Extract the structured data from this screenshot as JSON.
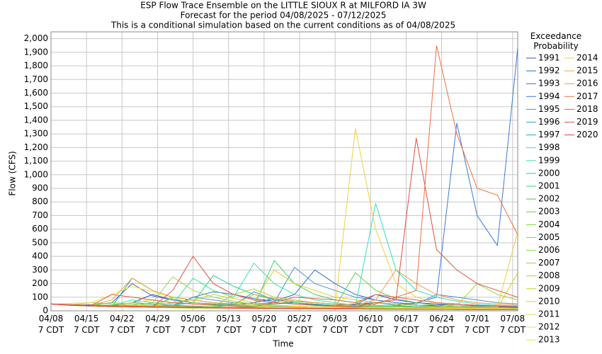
{
  "chart_data": {
    "type": "line",
    "title": "ESP Flow Trace Ensemble on the LITTLE SIOUX R at MILFORD IA 3W",
    "subtitle": "Forecast for the period 04/08/2025 - 07/12/2025",
    "note": "This is a conditional simulation based on the current conditions as of 04/08/2025",
    "x_label": "Time",
    "y_label": "Flow (CFS)",
    "legend_title": "Exceedance Probability",
    "grid": true,
    "xlim": [
      "04/08",
      "07/09"
    ],
    "ylim": [
      0,
      2050
    ],
    "xticks": [
      {
        "value": "04/08",
        "label": "04/08 7 CDT"
      },
      {
        "value": "04/15",
        "label": "04/15 7 CDT"
      },
      {
        "value": "04/22",
        "label": "04/22 7 CDT"
      },
      {
        "value": "04/29",
        "label": "04/29 7 CDT"
      },
      {
        "value": "05/06",
        "label": "05/06 7 CDT"
      },
      {
        "value": "05/13",
        "label": "05/13 7 CDT"
      },
      {
        "value": "05/20",
        "label": "05/20 7 CDT"
      },
      {
        "value": "05/27",
        "label": "05/27 7 CDT"
      },
      {
        "value": "06/03",
        "label": "06/03 7 CDT"
      },
      {
        "value": "06/10",
        "label": "06/10 7 CDT"
      },
      {
        "value": "06/17",
        "label": "06/17 7 CDT"
      },
      {
        "value": "06/24",
        "label": "06/24 7 CDT"
      },
      {
        "value": "07/01",
        "label": "07/01 7 CDT"
      },
      {
        "value": "07/08",
        "label": "07/08 7 CDT"
      }
    ],
    "yticks": [
      0,
      100,
      200,
      300,
      400,
      500,
      600,
      700,
      800,
      900,
      {
        "value": 1000,
        "label": "1,000"
      },
      {
        "value": 1100,
        "label": "1,100"
      },
      {
        "value": 1200,
        "label": "1,200"
      },
      {
        "value": 1300,
        "label": "1,300"
      },
      {
        "value": 1400,
        "label": "1,400"
      },
      {
        "value": 1500,
        "label": "1,500"
      },
      {
        "value": 1600,
        "label": "1,600"
      },
      {
        "value": 1700,
        "label": "1,700"
      },
      {
        "value": 1800,
        "label": "1,800"
      },
      {
        "value": 1900,
        "label": "1,900"
      },
      {
        "value": 2000,
        "label": "2,000"
      }
    ],
    "x": [
      "04/08",
      "04/12",
      "04/16",
      "04/20",
      "04/24",
      "04/28",
      "05/02",
      "05/06",
      "05/10",
      "05/14",
      "05/18",
      "05/22",
      "05/26",
      "05/30",
      "06/03",
      "06/07",
      "06/11",
      "06/15",
      "06/19",
      "06/23",
      "06/27",
      "07/01",
      "07/05",
      "07/09"
    ],
    "series": [
      {
        "name": "1991",
        "color": "#3050c0",
        "values": [
          50,
          42,
          38,
          35,
          60,
          120,
          80,
          60,
          45,
          40,
          60,
          90,
          70,
          60,
          50,
          45,
          120,
          80,
          60,
          50,
          40,
          35,
          30,
          28
        ]
      },
      {
        "name": "1992",
        "color": "#4060d0",
        "values": [
          50,
          42,
          45,
          60,
          200,
          110,
          80,
          60,
          50,
          45,
          40,
          50,
          60,
          45,
          40,
          50,
          60,
          50,
          40,
          35,
          30,
          30,
          30,
          25
        ]
      },
      {
        "name": "1993",
        "color": "#2f6fc0",
        "values": [
          50,
          40,
          35,
          30,
          30,
          35,
          40,
          100,
          140,
          120,
          90,
          70,
          120,
          300,
          200,
          120,
          80,
          60,
          40,
          40,
          50,
          40,
          35,
          30
        ]
      },
      {
        "name": "1994",
        "color": "#3a7ad8",
        "values": [
          50,
          40,
          35,
          30,
          28,
          25,
          24,
          22,
          20,
          20,
          18,
          18,
          16,
          16,
          15,
          15,
          20,
          40,
          60,
          100,
          1380,
          700,
          480,
          1930
        ]
      },
      {
        "name": "1995",
        "color": "#4a90d0",
        "values": [
          50,
          42,
          40,
          38,
          35,
          30,
          30,
          100,
          80,
          60,
          50,
          60,
          320,
          200,
          150,
          100,
          80,
          60,
          50,
          120,
          100,
          80,
          60,
          50
        ]
      },
      {
        "name": "1996",
        "color": "#30a0c0",
        "values": [
          50,
          45,
          40,
          40,
          60,
          50,
          40,
          35,
          30,
          40,
          140,
          80,
          60,
          40,
          35,
          30,
          30,
          30,
          30,
          25,
          25,
          25,
          20,
          20
        ]
      },
      {
        "name": "1997",
        "color": "#20b0b0",
        "values": [
          50,
          40,
          35,
          30,
          240,
          150,
          100,
          80,
          60,
          50,
          40,
          35,
          30,
          30,
          30,
          40,
          60,
          40,
          30,
          30,
          25,
          25,
          22,
          20
        ]
      },
      {
        "name": "1998",
        "color": "#30e0c0",
        "values": [
          50,
          42,
          38,
          35,
          30,
          30,
          30,
          28,
          25,
          25,
          25,
          22,
          20,
          20,
          20,
          30,
          790,
          300,
          150,
          100,
          70,
          50,
          40,
          35
        ]
      },
      {
        "name": "1999",
        "color": "#40e0a0",
        "values": [
          50,
          40,
          38,
          40,
          80,
          60,
          50,
          240,
          150,
          100,
          350,
          200,
          120,
          80,
          60,
          40,
          30,
          30,
          25,
          25,
          20,
          20,
          20,
          18
        ]
      },
      {
        "name": "2000",
        "color": "#30d090",
        "values": [
          50,
          40,
          35,
          30,
          30,
          30,
          40,
          60,
          260,
          180,
          120,
          80,
          60,
          50,
          40,
          35,
          30,
          30,
          25,
          25,
          22,
          20,
          20,
          18
        ]
      },
      {
        "name": "2001",
        "color": "#40d070",
        "values": [
          50,
          40,
          35,
          30,
          28,
          25,
          24,
          22,
          20,
          25,
          30,
          370,
          200,
          120,
          80,
          60,
          40,
          35,
          30,
          25,
          22,
          20,
          18,
          16
        ]
      },
      {
        "name": "2002",
        "color": "#50c050",
        "values": [
          50,
          45,
          40,
          35,
          30,
          30,
          100,
          80,
          60,
          50,
          40,
          50,
          70,
          60,
          50,
          40,
          60,
          50,
          40,
          30,
          30,
          25,
          20,
          20
        ]
      },
      {
        "name": "2003",
        "color": "#60d040",
        "values": [
          50,
          40,
          38,
          35,
          32,
          30,
          28,
          25,
          25,
          60,
          50,
          40,
          35,
          30,
          30,
          280,
          150,
          90,
          60,
          40,
          30,
          25,
          22,
          20
        ]
      },
      {
        "name": "2004",
        "color": "#70d030",
        "values": [
          50,
          40,
          35,
          30,
          28,
          25,
          22,
          20,
          20,
          18,
          16,
          15,
          15,
          14,
          14,
          13,
          12,
          12,
          11,
          11,
          10,
          10,
          10,
          10
        ]
      },
      {
        "name": "2005",
        "color": "#80e020",
        "values": [
          50,
          45,
          40,
          60,
          50,
          40,
          35,
          30,
          28,
          25,
          40,
          30,
          25,
          22,
          20,
          20,
          18,
          18,
          16,
          15,
          14,
          13,
          12,
          12
        ]
      },
      {
        "name": "2006",
        "color": "#90e040",
        "values": [
          50,
          42,
          40,
          35,
          30,
          40,
          90,
          60,
          45,
          40,
          35,
          30,
          28,
          25,
          22,
          20,
          20,
          18,
          16,
          15,
          14,
          13,
          12,
          12
        ]
      },
      {
        "name": "2007",
        "color": "#a0d040",
        "values": [
          50,
          40,
          38,
          35,
          40,
          60,
          250,
          150,
          100,
          70,
          50,
          40,
          35,
          30,
          28,
          25,
          22,
          20,
          20,
          30,
          40,
          200,
          120,
          80
        ]
      },
      {
        "name": "2008",
        "color": "#b0d030",
        "values": [
          50,
          45,
          60,
          50,
          40,
          35,
          30,
          30,
          30,
          120,
          160,
          100,
          80,
          60,
          50,
          40,
          35,
          30,
          25,
          22,
          20,
          20,
          18,
          18
        ]
      },
      {
        "name": "2009",
        "color": "#c0d020",
        "values": [
          50,
          40,
          35,
          30,
          28,
          25,
          22,
          20,
          20,
          18,
          18,
          16,
          15,
          15,
          14,
          14,
          13,
          12,
          12,
          11,
          11,
          10,
          10,
          10
        ]
      },
      {
        "name": "2010",
        "color": "#d0d020",
        "values": [
          50,
          42,
          40,
          38,
          35,
          40,
          60,
          80,
          120,
          90,
          60,
          300,
          200,
          150,
          100,
          80,
          60,
          50,
          40,
          30,
          25,
          20,
          20,
          280
        ]
      },
      {
        "name": "2011",
        "color": "#e0e040",
        "values": [
          50,
          45,
          40,
          35,
          30,
          28,
          25,
          24,
          22,
          20,
          20,
          20,
          18,
          18,
          16,
          16,
          15,
          14,
          14,
          13,
          12,
          12,
          11,
          11
        ]
      },
      {
        "name": "2012",
        "color": "#e8e060",
        "values": [
          50,
          40,
          35,
          30,
          28,
          25,
          24,
          22,
          20,
          20,
          18,
          18,
          16,
          15,
          15,
          14,
          13,
          12,
          12,
          11,
          10,
          10,
          10,
          10
        ]
      },
      {
        "name": "2013",
        "color": "#f0e040",
        "values": [
          50,
          55,
          60,
          120,
          180,
          140,
          100,
          80,
          60,
          50,
          40,
          40,
          35,
          30,
          30,
          28,
          25,
          22,
          20,
          20,
          18,
          18,
          16,
          15
        ]
      },
      {
        "name": "2014",
        "color": "#f0d040",
        "values": [
          50,
          40,
          35,
          30,
          60,
          80,
          60,
          50,
          40,
          35,
          30,
          30,
          28,
          25,
          25,
          1340,
          600,
          200,
          100,
          60,
          40,
          30,
          30,
          580
        ]
      },
      {
        "name": "2015",
        "color": "#f0a040",
        "values": [
          50,
          45,
          40,
          80,
          240,
          150,
          100,
          80,
          60,
          50,
          120,
          90,
          70,
          60,
          50,
          40,
          80,
          300,
          200,
          120,
          80,
          60,
          50,
          40
        ]
      },
      {
        "name": "2016",
        "color": "#f09040",
        "values": [
          50,
          40,
          38,
          35,
          30,
          28,
          25,
          24,
          22,
          20,
          20,
          18,
          18,
          16,
          15,
          15,
          14,
          13,
          12,
          12,
          11,
          11,
          10,
          10
        ]
      },
      {
        "name": "2017",
        "color": "#f07040",
        "values": [
          50,
          42,
          40,
          38,
          35,
          30,
          30,
          28,
          25,
          25,
          22,
          20,
          20,
          18,
          18,
          20,
          50,
          100,
          150,
          1950,
          1300,
          900,
          850,
          560
        ]
      },
      {
        "name": "2018",
        "color": "#e06050",
        "values": [
          50,
          45,
          40,
          120,
          100,
          80,
          60,
          50,
          40,
          35,
          30,
          60,
          100,
          90,
          80,
          60,
          120,
          100,
          80,
          60,
          50,
          40,
          35,
          30
        ]
      },
      {
        "name": "2019",
        "color": "#e05040",
        "values": [
          50,
          40,
          38,
          35,
          30,
          28,
          150,
          400,
          200,
          120,
          80,
          60,
          50,
          40,
          35,
          30,
          60,
          80,
          1270,
          450,
          300,
          200,
          150,
          100
        ]
      },
      {
        "name": "2020",
        "color": "#e04040",
        "values": [
          50,
          40,
          36,
          32,
          30,
          28,
          26,
          24,
          22,
          20,
          20,
          18,
          17,
          16,
          15,
          14,
          13,
          12,
          12,
          11,
          10,
          10,
          9,
          9
        ]
      }
    ]
  }
}
